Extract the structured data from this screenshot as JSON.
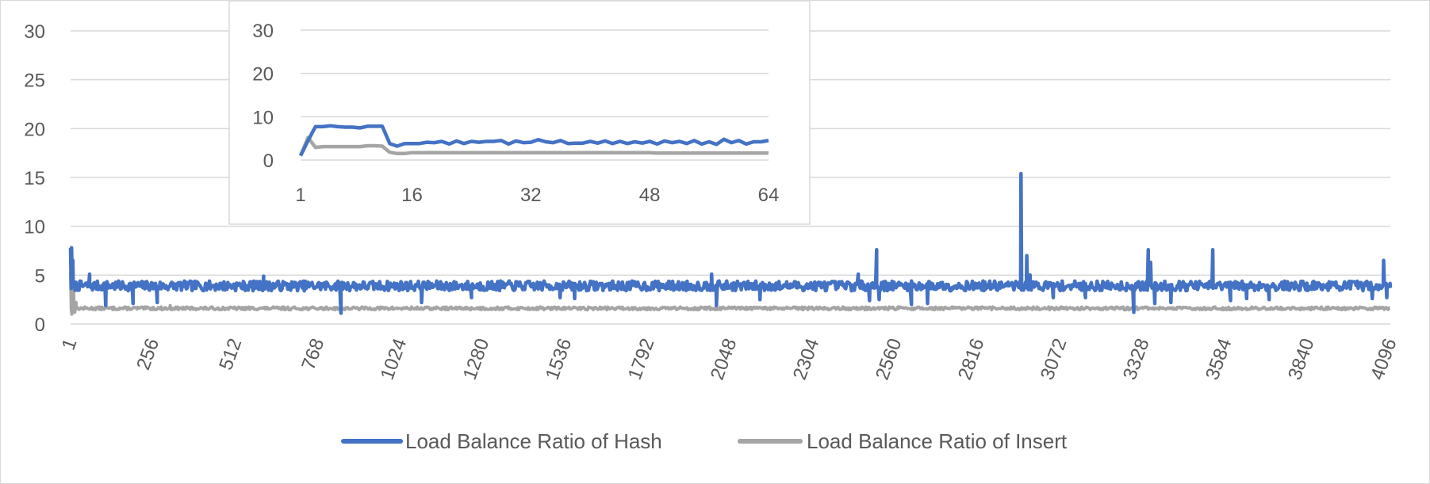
{
  "chart_data": [
    {
      "id": "main",
      "type": "line",
      "title": "",
      "xlabel": "",
      "ylabel": "",
      "xlim": [
        1,
        4096
      ],
      "ylim": [
        0,
        30
      ],
      "x_ticks": [
        "1",
        "256",
        "512",
        "768",
        "1024",
        "1280",
        "1536",
        "1792",
        "2048",
        "2304",
        "2560",
        "2816",
        "3072",
        "3328",
        "3584",
        "3840",
        "4096"
      ],
      "y_ticks": [
        "0",
        "5",
        "10",
        "15",
        "20",
        "25",
        "30"
      ],
      "grid": "horizontal",
      "legend": "bottom",
      "series": [
        {
          "name": "Load Balance Ratio of Hash",
          "color": "#4472C4",
          "baseline": 3.9,
          "spikes": [
            {
              "x": 1,
              "y": 7.8
            },
            {
              "x": 4,
              "y": 7.8
            },
            {
              "x": 8,
              "y": 6.5
            },
            {
              "x": 60,
              "y": 5.1
            },
            {
              "x": 110,
              "y": 1.9
            },
            {
              "x": 195,
              "y": 2.1
            },
            {
              "x": 270,
              "y": 2.2
            },
            {
              "x": 600,
              "y": 4.9
            },
            {
              "x": 840,
              "y": 1.1
            },
            {
              "x": 1090,
              "y": 2.2
            },
            {
              "x": 1245,
              "y": 2.7
            },
            {
              "x": 1520,
              "y": 2.7
            },
            {
              "x": 1565,
              "y": 2.6
            },
            {
              "x": 1990,
              "y": 5.1
            },
            {
              "x": 2005,
              "y": 1.9
            },
            {
              "x": 2140,
              "y": 2.5
            },
            {
              "x": 2445,
              "y": 5.1
            },
            {
              "x": 2480,
              "y": 2.4
            },
            {
              "x": 2502,
              "y": 7.6
            },
            {
              "x": 2510,
              "y": 2.5
            },
            {
              "x": 2610,
              "y": 2.0
            },
            {
              "x": 2660,
              "y": 2.1
            },
            {
              "x": 2950,
              "y": 15.4
            },
            {
              "x": 2968,
              "y": 7.0
            },
            {
              "x": 2978,
              "y": 5.0
            },
            {
              "x": 3050,
              "y": 2.7
            },
            {
              "x": 3150,
              "y": 2.7
            },
            {
              "x": 3300,
              "y": 1.2
            },
            {
              "x": 3345,
              "y": 7.6
            },
            {
              "x": 3352,
              "y": 6.3
            },
            {
              "x": 3365,
              "y": 2.1
            },
            {
              "x": 3415,
              "y": 2.2
            },
            {
              "x": 3545,
              "y": 7.6
            },
            {
              "x": 3600,
              "y": 2.4
            },
            {
              "x": 3650,
              "y": 2.6
            },
            {
              "x": 3720,
              "y": 2.5
            },
            {
              "x": 4040,
              "y": 2.6
            },
            {
              "x": 4075,
              "y": 6.5
            },
            {
              "x": 4085,
              "y": 2.7
            },
            {
              "x": 4096,
              "y": 3.7
            }
          ]
        },
        {
          "name": "Load Balance Ratio of Insert",
          "color": "#A5A5A5",
          "baseline": 1.6,
          "spikes": [
            {
              "x": 1,
              "y": 5.3
            },
            {
              "x": 5,
              "y": 1.0
            },
            {
              "x": 10,
              "y": 3.8
            },
            {
              "x": 14,
              "y": 1.2
            },
            {
              "x": 18,
              "y": 2.2
            },
            {
              "x": 310,
              "y": 1.9
            }
          ]
        }
      ]
    },
    {
      "id": "inset",
      "type": "line",
      "title": "",
      "xlabel": "",
      "ylabel": "",
      "xlim": [
        1,
        64
      ],
      "ylim": [
        0,
        30
      ],
      "x_ticks": [
        "1",
        "16",
        "32",
        "48",
        "64"
      ],
      "y_ticks": [
        "0",
        "10",
        "20",
        "30"
      ],
      "grid": "horizontal",
      "series": [
        {
          "name": "Load Balance Ratio of Hash",
          "color": "#4472C4",
          "x": [
            1,
            2,
            3,
            4,
            5,
            6,
            7,
            8,
            9,
            10,
            11,
            12,
            13,
            14,
            15,
            16,
            17,
            18,
            19,
            20,
            21,
            22,
            23,
            24,
            25,
            26,
            27,
            28,
            29,
            30,
            31,
            32,
            33,
            34,
            35,
            36,
            37,
            38,
            39,
            40,
            41,
            42,
            43,
            44,
            45,
            46,
            47,
            48,
            49,
            50,
            51,
            52,
            53,
            54,
            55,
            56,
            57,
            58,
            59,
            60,
            61,
            62,
            63,
            64
          ],
          "values": [
            1.0,
            4.5,
            7.7,
            7.7,
            7.9,
            7.7,
            7.6,
            7.6,
            7.4,
            7.8,
            7.8,
            7.8,
            3.8,
            3.2,
            3.8,
            3.8,
            3.8,
            4.1,
            4.0,
            4.3,
            3.7,
            4.4,
            3.8,
            4.3,
            4.1,
            4.3,
            4.3,
            4.5,
            3.7,
            4.4,
            4.0,
            4.1,
            4.7,
            4.2,
            4.0,
            4.5,
            3.8,
            3.9,
            3.9,
            4.3,
            3.9,
            4.4,
            3.8,
            4.3,
            3.8,
            4.2,
            3.9,
            4.3,
            3.7,
            4.4,
            4.0,
            4.3,
            3.8,
            4.5,
            3.7,
            4.2,
            3.6,
            4.8,
            4.0,
            4.5,
            3.7,
            4.2,
            4.2,
            4.5
          ]
        },
        {
          "name": "Load Balance Ratio of Insert",
          "color": "#A5A5A5",
          "x": [
            1,
            2,
            3,
            4,
            5,
            6,
            7,
            8,
            9,
            10,
            11,
            12,
            13,
            14,
            15,
            16,
            17,
            18,
            19,
            20,
            21,
            22,
            23,
            24,
            25,
            26,
            27,
            28,
            29,
            30,
            31,
            32,
            33,
            34,
            35,
            36,
            37,
            38,
            39,
            40,
            41,
            42,
            43,
            44,
            45,
            46,
            47,
            48,
            49,
            50,
            51,
            52,
            53,
            54,
            55,
            56,
            57,
            58,
            59,
            60,
            61,
            62,
            63,
            64
          ],
          "values": [
            1.0,
            5.2,
            2.9,
            3.1,
            3.1,
            3.1,
            3.1,
            3.1,
            3.1,
            3.3,
            3.3,
            3.2,
            1.8,
            1.5,
            1.5,
            1.7,
            1.7,
            1.7,
            1.7,
            1.7,
            1.7,
            1.7,
            1.7,
            1.7,
            1.7,
            1.7,
            1.7,
            1.7,
            1.7,
            1.7,
            1.7,
            1.7,
            1.7,
            1.7,
            1.7,
            1.7,
            1.7,
            1.7,
            1.7,
            1.7,
            1.7,
            1.7,
            1.7,
            1.7,
            1.7,
            1.7,
            1.7,
            1.7,
            1.6,
            1.6,
            1.6,
            1.6,
            1.6,
            1.6,
            1.6,
            1.6,
            1.6,
            1.6,
            1.6,
            1.6,
            1.6,
            1.6,
            1.6,
            1.6
          ]
        }
      ]
    }
  ]
}
